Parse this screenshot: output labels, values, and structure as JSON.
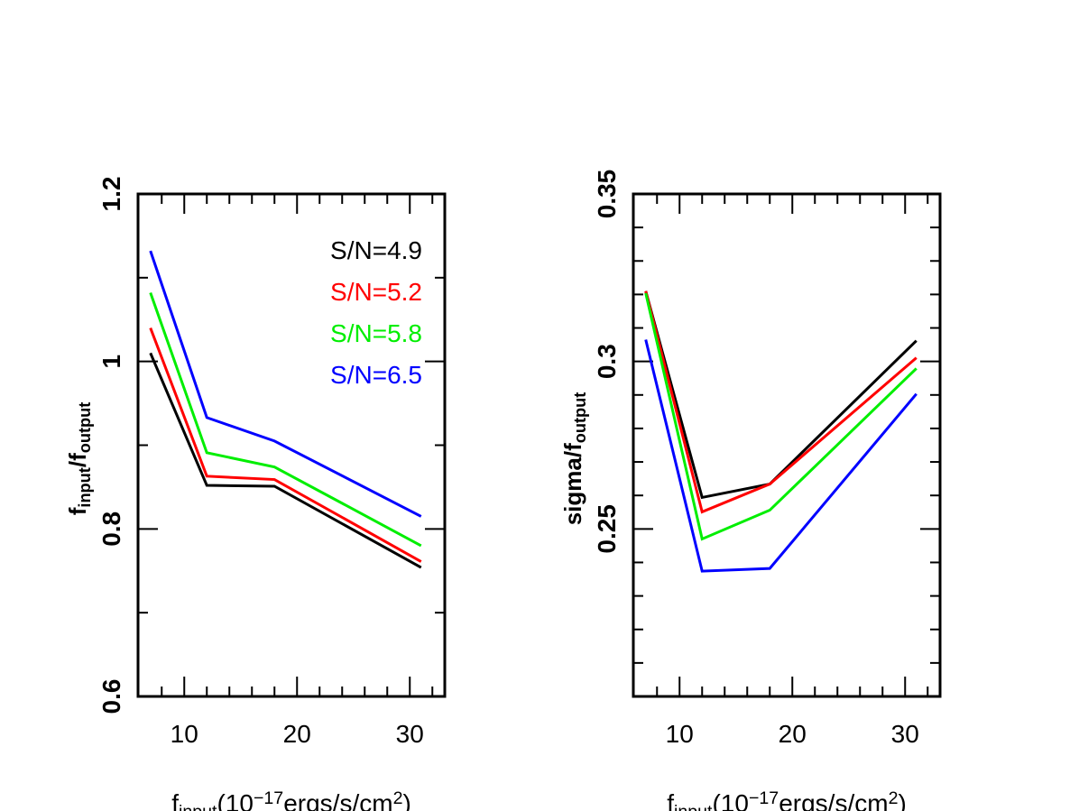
{
  "chart_data": [
    {
      "type": "line",
      "x": [
        7,
        12,
        18,
        31
      ],
      "series": [
        {
          "name": "S/N=4.9",
          "color": "#000000",
          "values": [
            1.01,
            0.852,
            0.851,
            0.754
          ]
        },
        {
          "name": "S/N=5.2",
          "color": "#ff0000",
          "values": [
            1.04,
            0.863,
            0.859,
            0.761
          ]
        },
        {
          "name": "S/N=5.8",
          "color": "#00ee00",
          "values": [
            1.082,
            0.891,
            0.874,
            0.78
          ]
        },
        {
          "name": "S/N=6.5",
          "color": "#0000ff",
          "values": [
            1.132,
            0.933,
            0.905,
            0.815
          ]
        }
      ],
      "xlim": [
        5.9,
        33.1
      ],
      "xticks": [
        10,
        20,
        30
      ],
      "xticks_minor": [
        8,
        12,
        14,
        16,
        18,
        22,
        24,
        26,
        28,
        32
      ],
      "ylim": [
        0.6,
        1.2
      ],
      "yticks": [
        0.6,
        0.8,
        1,
        1.2
      ],
      "yticks_minor": [
        0.7,
        0.9,
        1.1
      ],
      "ylabel": [
        {
          "text": "f",
          "script": "base"
        },
        {
          "text": "input",
          "script": "sub"
        },
        {
          "text": "/f",
          "script": "base"
        },
        {
          "text": "output",
          "script": "sub"
        }
      ],
      "xlabel": [
        {
          "text": "f",
          "script": "base"
        },
        {
          "text": "input",
          "script": "sub"
        },
        {
          "text": "(10",
          "script": "base"
        },
        {
          "text": "−17",
          "script": "sup"
        },
        {
          "text": "ergs/s/cm",
          "script": "base"
        },
        {
          "text": "2",
          "script": "sup"
        },
        {
          "text": ")",
          "script": "base"
        }
      ],
      "legend": "upper right"
    },
    {
      "type": "line",
      "x": [
        7,
        12,
        18,
        31
      ],
      "series": [
        {
          "color": "#000000",
          "values": [
            0.321,
            0.2594,
            0.2634,
            0.3062
          ]
        },
        {
          "color": "#ff0000",
          "values": [
            0.321,
            0.2551,
            0.2634,
            0.3011
          ]
        },
        {
          "color": "#00ee00",
          "values": [
            0.3204,
            0.247,
            0.2556,
            0.2979
          ]
        },
        {
          "color": "#0000ff",
          "values": [
            0.3065,
            0.2374,
            0.2382,
            0.2903
          ]
        }
      ],
      "xlim": [
        5.9,
        33.1
      ],
      "xticks": [
        10,
        20,
        30
      ],
      "xticks_minor": [
        8,
        12,
        14,
        16,
        18,
        22,
        24,
        26,
        28,
        32
      ],
      "ylim": [
        0.2,
        0.35
      ],
      "yticks": [
        0.25,
        0.3,
        0.35
      ],
      "yticks_minor": [
        0.21,
        0.22,
        0.23,
        0.24,
        0.26,
        0.27,
        0.28,
        0.29,
        0.31,
        0.32,
        0.33,
        0.34
      ],
      "ylabel": [
        {
          "text": "sigma/f",
          "script": "base"
        },
        {
          "text": "output",
          "script": "sub"
        }
      ],
      "xlabel": [
        {
          "text": "f",
          "script": "base"
        },
        {
          "text": "input",
          "script": "sub"
        },
        {
          "text": "(10",
          "script": "base"
        },
        {
          "text": "−17",
          "script": "sup"
        },
        {
          "text": "ergs/s/cm",
          "script": "base"
        },
        {
          "text": "2",
          "script": "sup"
        },
        {
          "text": ")",
          "script": "base"
        }
      ]
    }
  ]
}
